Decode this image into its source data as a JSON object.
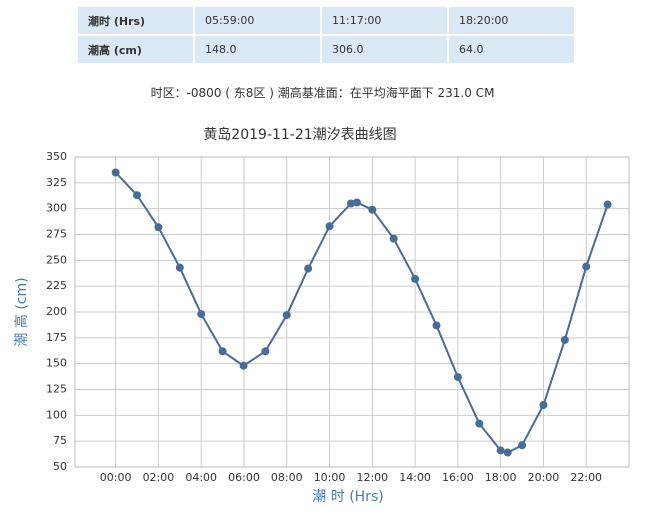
{
  "table": {
    "rows": [
      [
        "潮时 (Hrs)",
        "05:59:00",
        "11:17:00",
        "18:20:00"
      ],
      [
        "潮高 (cm)",
        "148.0",
        "306.0",
        "64.0"
      ]
    ]
  },
  "note": "时区：-0800 ( 东8区 ) 潮高基准面：在平均海平面下 231.0 CM",
  "chart_data": {
    "type": "line",
    "title": "黄岛2019-11-21潮汐表曲线图",
    "x_label": "潮 时 (Hrs)",
    "y_label": "潮 高 (cm)",
    "x": [
      0,
      1,
      2,
      3,
      4,
      5,
      5.98,
      7,
      8,
      9,
      10,
      11,
      11.28,
      12,
      13,
      14,
      15,
      16,
      17,
      18,
      18.33,
      19,
      20,
      21,
      22,
      23
    ],
    "series": [
      {
        "color": "#4a6b98",
        "values": [
          335,
          313,
          282,
          243,
          198,
          162,
          148,
          162,
          197,
          242,
          283,
          305,
          306,
          299,
          271,
          232,
          187,
          137,
          92,
          66,
          64,
          71,
          110,
          173,
          244,
          304
        ]
      }
    ],
    "xlim": [
      -1.9,
      24
    ],
    "ylim": [
      50,
      350
    ],
    "xticks": [
      {
        "value": 0,
        "label": "00:00"
      },
      {
        "value": 2,
        "label": "02:00"
      },
      {
        "value": 4,
        "label": "04:00"
      },
      {
        "value": 6,
        "label": "06:00"
      },
      {
        "value": 8,
        "label": "08:00"
      },
      {
        "value": 10,
        "label": "10:00"
      },
      {
        "value": 12,
        "label": "12:00"
      },
      {
        "value": 14,
        "label": "14:00"
      },
      {
        "value": 16,
        "label": "16:00"
      },
      {
        "value": 18,
        "label": "18:00"
      },
      {
        "value": 20,
        "label": "20:00"
      },
      {
        "value": 22,
        "label": "22:00"
      }
    ],
    "yticks": [
      50,
      75,
      100,
      125,
      150,
      175,
      200,
      225,
      250,
      275,
      300,
      325,
      350
    ],
    "grid": true
  }
}
